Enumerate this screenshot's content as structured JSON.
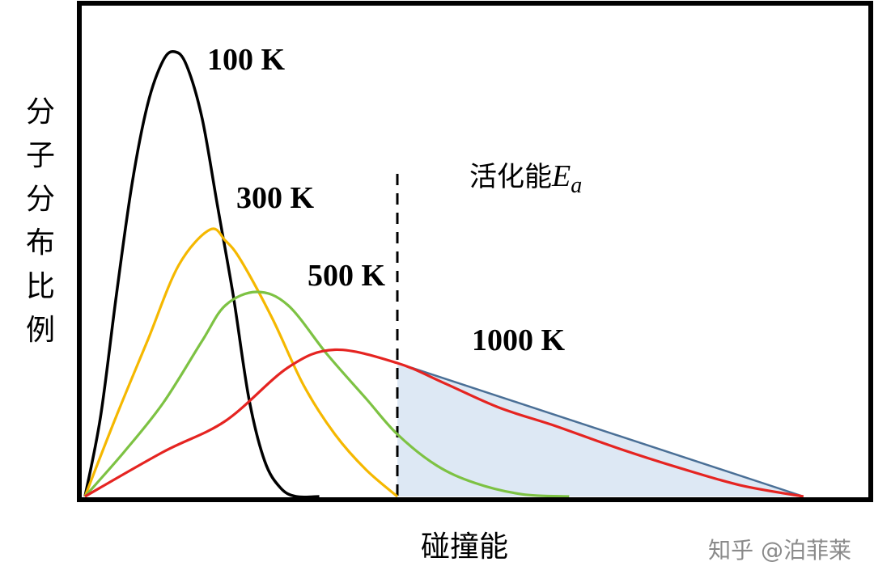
{
  "chart_data": {
    "type": "line",
    "title": "",
    "xlabel": "碰撞能",
    "ylabel": "分子分布比例",
    "xlim": [
      0,
      1000
    ],
    "ylim": [
      0,
      1
    ],
    "grid": false,
    "legend": "none",
    "series": [
      {
        "name": "100 K",
        "color": "#000000",
        "points": [
          [
            0,
            0
          ],
          [
            20,
            0.18
          ],
          [
            40,
            0.45
          ],
          [
            60,
            0.7
          ],
          [
            80,
            0.88
          ],
          [
            100,
            0.98
          ],
          [
            115,
            1.0
          ],
          [
            130,
            0.97
          ],
          [
            150,
            0.85
          ],
          [
            170,
            0.65
          ],
          [
            190,
            0.45
          ],
          [
            210,
            0.22
          ],
          [
            230,
            0.08
          ],
          [
            250,
            0.02
          ],
          [
            270,
            0.0
          ],
          [
            300,
            0.0
          ]
        ]
      },
      {
        "name": "300 K",
        "color": "#f5b800",
        "points": [
          [
            0,
            0
          ],
          [
            40,
            0.18
          ],
          [
            80,
            0.35
          ],
          [
            120,
            0.52
          ],
          [
            160,
            0.6
          ],
          [
            180,
            0.575
          ],
          [
            200,
            0.53
          ],
          [
            240,
            0.4
          ],
          [
            280,
            0.25
          ],
          [
            320,
            0.14
          ],
          [
            360,
            0.06
          ],
          [
            400,
            0.0
          ]
        ]
      },
      {
        "name": "500 K",
        "color": "#7dc243",
        "points": [
          [
            0,
            0
          ],
          [
            50,
            0.1
          ],
          [
            100,
            0.21
          ],
          [
            150,
            0.35
          ],
          [
            180,
            0.43
          ],
          [
            220,
            0.46
          ],
          [
            260,
            0.43
          ],
          [
            310,
            0.32
          ],
          [
            360,
            0.22
          ],
          [
            400,
            0.14
          ],
          [
            450,
            0.07
          ],
          [
            500,
            0.03
          ],
          [
            560,
            0.005
          ],
          [
            620,
            0.0
          ]
        ]
      },
      {
        "name": "1000 K",
        "color": "#e52421",
        "points": [
          [
            0,
            0
          ],
          [
            100,
            0.1
          ],
          [
            180,
            0.17
          ],
          [
            260,
            0.29
          ],
          [
            320,
            0.33
          ],
          [
            400,
            0.3
          ],
          [
            460,
            0.255
          ],
          [
            530,
            0.2
          ],
          [
            600,
            0.16
          ],
          [
            680,
            0.11
          ],
          [
            760,
            0.065
          ],
          [
            840,
            0.025
          ],
          [
            920,
            0.0
          ]
        ]
      }
    ],
    "activation_energy": {
      "x": 400,
      "label_text": "活化能",
      "label_symbol": "E",
      "label_subscript": "a",
      "shade_color": "#dde8f4",
      "edge_color": "#4a6f96"
    }
  },
  "watermark": "知乎 @泊菲莱"
}
